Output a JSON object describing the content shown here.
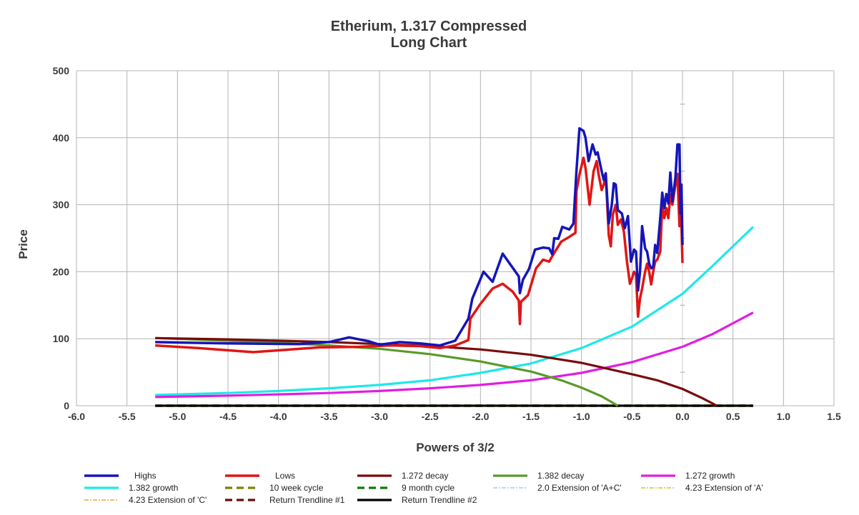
{
  "chart_data": {
    "type": "line",
    "title": "Etherium, 1.317 Compressed",
    "subtitle": "Long Chart",
    "xlabel": "Powers of 3/2",
    "ylabel": "Price",
    "xlim": [
      -6.0,
      1.5
    ],
    "ylim": [
      0,
      500
    ],
    "x_ticks": [
      "-6.0",
      "-5.5",
      "-5.0",
      "-4.5",
      "-4.0",
      "-3.5",
      "-3.0",
      "-2.5",
      "-2.0",
      "-1.5",
      "-1.0",
      "-0.5",
      "0.0",
      "0.5",
      "1.0",
      "1.5"
    ],
    "y_ticks": [
      "0",
      "100",
      "200",
      "300",
      "400",
      "500"
    ],
    "grid": true,
    "legend_position": "bottom",
    "series": [
      {
        "name": "Highs",
        "color": "#1515b8",
        "width": 3.5,
        "dash": "",
        "points": [
          [
            -5.22,
            95
          ],
          [
            -4.5,
            93
          ],
          [
            -3.8,
            92
          ],
          [
            -3.5,
            95
          ],
          [
            -3.3,
            102
          ],
          [
            -3.1,
            96
          ],
          [
            -3.0,
            91
          ],
          [
            -2.8,
            95
          ],
          [
            -2.6,
            93
          ],
          [
            -2.4,
            90
          ],
          [
            -2.25,
            97
          ],
          [
            -2.12,
            130
          ],
          [
            -2.08,
            160
          ],
          [
            -1.97,
            200
          ],
          [
            -1.88,
            185
          ],
          [
            -1.78,
            227
          ],
          [
            -1.62,
            193
          ],
          [
            -1.61,
            168
          ],
          [
            -1.58,
            188
          ],
          [
            -1.52,
            204
          ],
          [
            -1.46,
            233
          ],
          [
            -1.38,
            236
          ],
          [
            -1.32,
            235
          ],
          [
            -1.29,
            226
          ],
          [
            -1.27,
            250
          ],
          [
            -1.23,
            249
          ],
          [
            -1.19,
            267
          ],
          [
            -1.12,
            263
          ],
          [
            -1.08,
            272
          ],
          [
            -1.05,
            350
          ],
          [
            -1.02,
            414
          ],
          [
            -0.98,
            410
          ],
          [
            -0.96,
            400
          ],
          [
            -0.93,
            365
          ],
          [
            -0.89,
            390
          ],
          [
            -0.86,
            375
          ],
          [
            -0.84,
            378
          ],
          [
            -0.8,
            350
          ],
          [
            -0.78,
            337
          ],
          [
            -0.76,
            347
          ],
          [
            -0.73,
            272
          ],
          [
            -0.7,
            300
          ],
          [
            -0.68,
            332
          ],
          [
            -0.66,
            330
          ],
          [
            -0.64,
            292
          ],
          [
            -0.6,
            287
          ],
          [
            -0.57,
            265
          ],
          [
            -0.54,
            283
          ],
          [
            -0.51,
            215
          ],
          [
            -0.48,
            233
          ],
          [
            -0.46,
            230
          ],
          [
            -0.44,
            172
          ],
          [
            -0.42,
            200
          ],
          [
            -0.4,
            268
          ],
          [
            -0.37,
            235
          ],
          [
            -0.35,
            230
          ],
          [
            -0.33,
            212
          ],
          [
            -0.31,
            205
          ],
          [
            -0.29,
            207
          ],
          [
            -0.27,
            240
          ],
          [
            -0.25,
            228
          ],
          [
            -0.22,
            280
          ],
          [
            -0.2,
            318
          ],
          [
            -0.18,
            295
          ],
          [
            -0.16,
            316
          ],
          [
            -0.14,
            302
          ],
          [
            -0.12,
            348
          ],
          [
            -0.1,
            305
          ],
          [
            -0.07,
            340
          ],
          [
            -0.05,
            390
          ],
          [
            -0.03,
            390
          ],
          [
            -0.02,
            287
          ],
          [
            -0.01,
            330
          ],
          [
            0.0,
            240
          ]
        ]
      },
      {
        "name": "Lows",
        "color": "#e01515",
        "width": 3.5,
        "dash": "",
        "points": [
          [
            -5.22,
            90
          ],
          [
            -4.8,
            86
          ],
          [
            -4.25,
            80
          ],
          [
            -3.6,
            87
          ],
          [
            -3.2,
            88
          ],
          [
            -2.9,
            90
          ],
          [
            -2.6,
            89
          ],
          [
            -2.4,
            86
          ],
          [
            -2.25,
            90
          ],
          [
            -2.12,
            98
          ],
          [
            -2.1,
            130
          ],
          [
            -2.0,
            152
          ],
          [
            -1.88,
            175
          ],
          [
            -1.78,
            182
          ],
          [
            -1.68,
            170
          ],
          [
            -1.62,
            157
          ],
          [
            -1.61,
            122
          ],
          [
            -1.6,
            155
          ],
          [
            -1.53,
            165
          ],
          [
            -1.45,
            205
          ],
          [
            -1.38,
            218
          ],
          [
            -1.32,
            215
          ],
          [
            -1.27,
            228
          ],
          [
            -1.2,
            245
          ],
          [
            -1.12,
            252
          ],
          [
            -1.06,
            258
          ],
          [
            -1.05,
            320
          ],
          [
            -1.02,
            345
          ],
          [
            -0.98,
            370
          ],
          [
            -0.96,
            355
          ],
          [
            -0.92,
            300
          ],
          [
            -0.88,
            350
          ],
          [
            -0.85,
            365
          ],
          [
            -0.83,
            345
          ],
          [
            -0.8,
            322
          ],
          [
            -0.78,
            330
          ],
          [
            -0.76,
            345
          ],
          [
            -0.73,
            255
          ],
          [
            -0.71,
            238
          ],
          [
            -0.69,
            285
          ],
          [
            -0.66,
            300
          ],
          [
            -0.64,
            270
          ],
          [
            -0.61,
            278
          ],
          [
            -0.58,
            260
          ],
          [
            -0.55,
            215
          ],
          [
            -0.52,
            182
          ],
          [
            -0.5,
            190
          ],
          [
            -0.48,
            200
          ],
          [
            -0.46,
            195
          ],
          [
            -0.44,
            133
          ],
          [
            -0.42,
            160
          ],
          [
            -0.4,
            175
          ],
          [
            -0.37,
            200
          ],
          [
            -0.35,
            212
          ],
          [
            -0.33,
            200
          ],
          [
            -0.31,
            181
          ],
          [
            -0.29,
            200
          ],
          [
            -0.27,
            215
          ],
          [
            -0.25,
            218
          ],
          [
            -0.22,
            230
          ],
          [
            -0.2,
            300
          ],
          [
            -0.18,
            280
          ],
          [
            -0.16,
            295
          ],
          [
            -0.14,
            280
          ],
          [
            -0.12,
            315
          ],
          [
            -0.1,
            300
          ],
          [
            -0.07,
            330
          ],
          [
            -0.05,
            346
          ],
          [
            -0.03,
            268
          ],
          [
            -0.02,
            290
          ],
          [
            -0.01,
            268
          ],
          [
            0.0,
            213
          ]
        ]
      },
      {
        "name": "1.272 decay",
        "color": "#7a0a0a",
        "width": 3.2,
        "dash": "",
        "points": [
          [
            -5.22,
            101
          ],
          [
            -4.5,
            99
          ],
          [
            -4.0,
            97
          ],
          [
            -3.5,
            95
          ],
          [
            -3.0,
            92
          ],
          [
            -2.5,
            89
          ],
          [
            -2.0,
            84
          ],
          [
            -1.5,
            76
          ],
          [
            -1.0,
            64
          ],
          [
            -0.5,
            47
          ],
          [
            -0.25,
            38
          ],
          [
            0.0,
            25
          ],
          [
            0.2,
            11
          ],
          [
            0.34,
            0
          ]
        ]
      },
      {
        "name": "1.382 decay",
        "color": "#5a9a2a",
        "width": 3.2,
        "dash": "",
        "points": [
          [
            -5.22,
            101
          ],
          [
            -4.5,
            97
          ],
          [
            -4.0,
            94
          ],
          [
            -3.5,
            90
          ],
          [
            -3.0,
            85
          ],
          [
            -2.5,
            77
          ],
          [
            -2.0,
            66
          ],
          [
            -1.5,
            51
          ],
          [
            -1.2,
            38
          ],
          [
            -1.0,
            27
          ],
          [
            -0.8,
            14
          ],
          [
            -0.64,
            0
          ]
        ]
      },
      {
        "name": "1.272 growth",
        "color": "#e01ee0",
        "width": 3.2,
        "dash": "",
        "points": [
          [
            -5.22,
            13
          ],
          [
            -4.5,
            15
          ],
          [
            -4.0,
            17
          ],
          [
            -3.5,
            19
          ],
          [
            -3.0,
            22
          ],
          [
            -2.5,
            26
          ],
          [
            -2.0,
            31
          ],
          [
            -1.5,
            38
          ],
          [
            -1.0,
            49
          ],
          [
            -0.5,
            65
          ],
          [
            0.0,
            88
          ],
          [
            0.3,
            107
          ],
          [
            0.7,
            139
          ]
        ]
      },
      {
        "name": "1.382 growth",
        "color": "#1ee8e8",
        "width": 3.2,
        "dash": "",
        "points": [
          [
            -5.22,
            16
          ],
          [
            -4.5,
            19
          ],
          [
            -4.0,
            22
          ],
          [
            -3.5,
            26
          ],
          [
            -3.0,
            31
          ],
          [
            -2.5,
            38
          ],
          [
            -2.0,
            49
          ],
          [
            -1.5,
            63
          ],
          [
            -1.0,
            86
          ],
          [
            -0.5,
            118
          ],
          [
            0.0,
            167
          ],
          [
            0.3,
            209
          ],
          [
            0.7,
            267
          ]
        ]
      },
      {
        "name": "10 week cycle",
        "color": "#7f7f00",
        "width": 3.2,
        "dash": "10,6",
        "points": [
          [
            -5.22,
            0
          ],
          [
            0.7,
            0
          ]
        ]
      },
      {
        "name": "9 month cycle",
        "color": "#0a7a0a",
        "width": 3.2,
        "dash": "10,6",
        "points": [
          [
            -5.22,
            0
          ],
          [
            0.7,
            0
          ]
        ]
      },
      {
        "name": "2.0 Extension of 'A+C'",
        "color": "#9ecbe8",
        "width": 1.5,
        "dash": "6,2,2,2",
        "points": [
          [
            -5.22,
            0
          ],
          [
            0.7,
            0
          ]
        ]
      },
      {
        "name": "4.23 Extension of 'A'",
        "color": "#c8c830",
        "width": 1.5,
        "dash": "6,2,2,2",
        "points": [
          [
            -5.22,
            0
          ],
          [
            0.7,
            0
          ]
        ]
      },
      {
        "name": "4.23 Extension of 'C'",
        "color": "#f0a040",
        "width": 1.5,
        "dash": "6,2,2,2",
        "points": [
          [
            -5.22,
            0
          ],
          [
            0.7,
            0
          ]
        ]
      },
      {
        "name": "Return Trendline #1",
        "color": "#6a0a0a",
        "width": 3.2,
        "dash": "10,6",
        "points": [
          [
            -5.22,
            0
          ],
          [
            0.7,
            0
          ]
        ]
      },
      {
        "name": "Return Trendline #2",
        "color": "#000000",
        "width": 3.2,
        "dash": "",
        "points": [
          [
            -5.22,
            0
          ],
          [
            0.7,
            0
          ]
        ]
      }
    ]
  }
}
